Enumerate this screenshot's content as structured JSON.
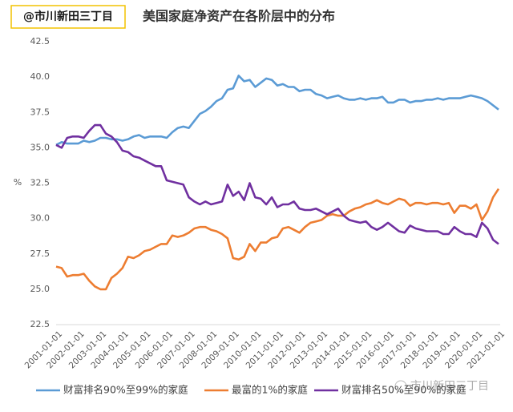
{
  "header": {
    "badge": "@市川新田三丁目",
    "watermark": "市川新田三丁目"
  },
  "chart_data": {
    "type": "line",
    "title": "美国家庭净资产在各阶层中的分布",
    "y_label": "%",
    "categories": [
      "2001-01-01",
      null,
      null,
      null,
      "2002-01-01",
      null,
      null,
      null,
      "2003-01-01",
      null,
      null,
      null,
      "2004-01-01",
      null,
      null,
      null,
      "2005-01-01",
      null,
      null,
      null,
      "2006-01-01",
      null,
      null,
      null,
      "2007-01-01",
      null,
      null,
      null,
      "2008-01-01",
      null,
      null,
      null,
      "2009-01-01",
      null,
      null,
      null,
      "2010-01-01",
      null,
      null,
      null,
      "2011-01-01",
      null,
      null,
      null,
      "2012-01-01",
      null,
      null,
      null,
      "2013-01-01",
      null,
      null,
      null,
      "2014-01-01",
      null,
      null,
      null,
      "2015-01-01",
      null,
      null,
      null,
      "2016-01-01",
      null,
      null,
      null,
      "2017-01-01",
      null,
      null,
      null,
      "2018-01-01",
      null,
      null,
      null,
      "2019-01-01",
      null,
      null,
      null,
      "2020-01-01",
      null,
      null,
      null,
      "2021-01-01"
    ],
    "series": [
      {
        "name": "财富排名90%至99%的家庭",
        "color": "#5b9bd5",
        "values": [
          35.2,
          35.4,
          35.3,
          35.3,
          35.3,
          35.5,
          35.4,
          35.5,
          35.7,
          35.7,
          35.6,
          35.6,
          35.5,
          35.6,
          35.8,
          35.9,
          35.7,
          35.8,
          35.8,
          35.8,
          35.7,
          36.1,
          36.4,
          36.5,
          36.4,
          36.9,
          37.4,
          37.6,
          37.9,
          38.3,
          38.5,
          39.1,
          39.2,
          40.1,
          39.7,
          39.8,
          39.3,
          39.6,
          39.9,
          39.8,
          39.4,
          39.5,
          39.3,
          39.3,
          39.0,
          39.1,
          39.1,
          38.8,
          38.7,
          38.5,
          38.6,
          38.7,
          38.5,
          38.4,
          38.4,
          38.5,
          38.4,
          38.5,
          38.5,
          38.6,
          38.2,
          38.2,
          38.4,
          38.4,
          38.2,
          38.3,
          38.3,
          38.4,
          38.4,
          38.5,
          38.4,
          38.5,
          38.5,
          38.5,
          38.6,
          38.7,
          38.6,
          38.5,
          38.3,
          38.0,
          37.7
        ]
      },
      {
        "name": "最富的1%的家庭",
        "color": "#ed7d31",
        "values": [
          26.6,
          26.5,
          25.9,
          26.0,
          26.0,
          26.1,
          25.6,
          25.2,
          25.0,
          25.0,
          25.8,
          26.1,
          26.5,
          27.3,
          27.2,
          27.4,
          27.7,
          27.8,
          28.0,
          28.2,
          28.2,
          28.8,
          28.7,
          28.8,
          29.0,
          29.3,
          29.4,
          29.4,
          29.2,
          29.1,
          28.9,
          28.6,
          27.2,
          27.1,
          27.3,
          28.2,
          27.7,
          28.3,
          28.3,
          28.6,
          28.7,
          29.3,
          29.4,
          29.2,
          29.0,
          29.4,
          29.7,
          29.8,
          29.9,
          30.2,
          30.3,
          30.2,
          30.2,
          30.5,
          30.7,
          30.8,
          31.0,
          31.1,
          31.3,
          31.1,
          31.0,
          31.2,
          31.4,
          31.3,
          30.9,
          31.1,
          31.1,
          31.0,
          31.1,
          31.1,
          31.0,
          31.1,
          30.4,
          30.9,
          30.9,
          30.7,
          31.0,
          29.9,
          30.5,
          31.5,
          32.1
        ]
      },
      {
        "name": "财富排名50%至90%的家庭",
        "color": "#7030a0",
        "values": [
          35.2,
          35.0,
          35.7,
          35.8,
          35.8,
          35.7,
          36.2,
          36.6,
          36.6,
          36.0,
          35.8,
          35.4,
          34.8,
          34.7,
          34.4,
          34.3,
          34.1,
          33.9,
          33.7,
          33.7,
          32.7,
          32.6,
          32.5,
          32.4,
          31.5,
          31.2,
          31.0,
          31.2,
          31.0,
          31.1,
          31.2,
          32.4,
          31.6,
          31.9,
          31.3,
          32.5,
          31.5,
          31.4,
          31.0,
          31.5,
          30.8,
          31.0,
          31.0,
          31.2,
          30.7,
          30.6,
          30.6,
          30.7,
          30.5,
          30.3,
          30.5,
          30.7,
          30.2,
          29.9,
          29.8,
          29.7,
          29.8,
          29.4,
          29.2,
          29.4,
          29.7,
          29.4,
          29.1,
          29.0,
          29.5,
          29.3,
          29.2,
          29.1,
          29.1,
          29.1,
          28.9,
          28.9,
          29.4,
          29.1,
          28.9,
          28.9,
          28.7,
          29.7,
          29.3,
          28.5,
          28.2
        ]
      }
    ],
    "ylim": [
      22.5,
      42.5
    ],
    "yticks": [
      22.5,
      {
        "value": 25,
        "label": "25.0"
      },
      27.5,
      {
        "value": 30,
        "label": "30.0"
      },
      32.5,
      {
        "value": 35,
        "label": "35.0"
      },
      37.5,
      {
        "value": 40,
        "label": "40.0"
      },
      42.5
    ],
    "grid": false
  }
}
